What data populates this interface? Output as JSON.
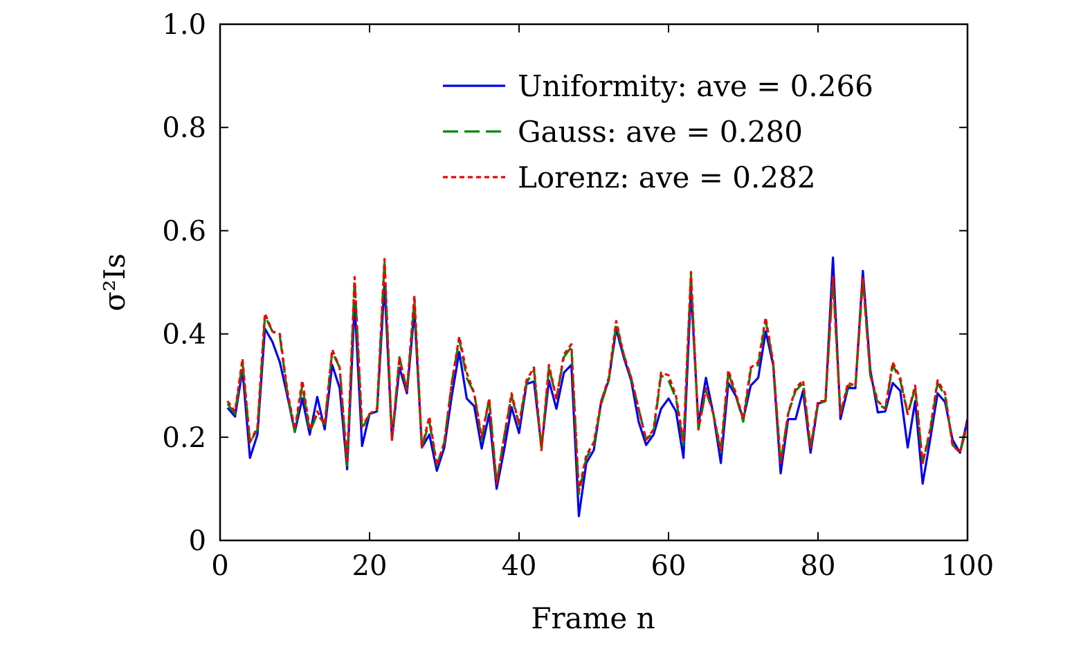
{
  "chart_data": {
    "type": "line",
    "xlabel": "Frame n",
    "ylabel": "σ²Is",
    "xlim": [
      0,
      100
    ],
    "ylim": [
      0,
      1.0
    ],
    "xticks": [
      0,
      20,
      40,
      60,
      80,
      100
    ],
    "xtick_labels": [
      "0",
      "20",
      "40",
      "60",
      "80",
      "100"
    ],
    "yticks": [
      0,
      0.2,
      0.4,
      0.6,
      0.8,
      1.0
    ],
    "ytick_labels": [
      "0",
      "0.2",
      "0.4",
      "0.6",
      "0.8",
      "1.0"
    ],
    "grid": false,
    "legend_position": "top-right",
    "x": [
      1,
      2,
      3,
      4,
      5,
      6,
      7,
      8,
      9,
      10,
      11,
      12,
      13,
      14,
      15,
      16,
      17,
      18,
      19,
      20,
      21,
      22,
      23,
      24,
      25,
      26,
      27,
      28,
      29,
      30,
      31,
      32,
      33,
      34,
      35,
      36,
      37,
      38,
      39,
      40,
      41,
      42,
      43,
      44,
      45,
      46,
      47,
      48,
      49,
      50,
      51,
      52,
      53,
      54,
      55,
      56,
      57,
      58,
      59,
      60,
      61,
      62,
      63,
      64,
      65,
      66,
      67,
      68,
      69,
      70,
      71,
      72,
      73,
      74,
      75,
      76,
      77,
      78,
      79,
      80,
      81,
      82,
      83,
      84,
      85,
      86,
      87,
      88,
      89,
      90,
      91,
      92,
      93,
      94,
      95,
      96,
      97,
      98,
      99,
      100
    ],
    "series": [
      {
        "name": "Uniformity: ave = 0.266",
        "color": "#0000ee",
        "dash": "solid",
        "values": [
          0.257,
          0.24,
          0.33,
          0.16,
          0.205,
          0.41,
          0.385,
          0.345,
          0.28,
          0.21,
          0.275,
          0.205,
          0.278,
          0.215,
          0.34,
          0.295,
          0.138,
          0.46,
          0.183,
          0.245,
          0.25,
          0.498,
          0.195,
          0.335,
          0.285,
          0.445,
          0.18,
          0.205,
          0.135,
          0.18,
          0.28,
          0.365,
          0.275,
          0.26,
          0.178,
          0.245,
          0.1,
          0.175,
          0.258,
          0.208,
          0.303,
          0.308,
          0.18,
          0.31,
          0.255,
          0.325,
          0.34,
          0.047,
          0.15,
          0.175,
          0.27,
          0.31,
          0.41,
          0.355,
          0.31,
          0.23,
          0.185,
          0.205,
          0.255,
          0.275,
          0.25,
          0.16,
          0.488,
          0.225,
          0.315,
          0.245,
          0.15,
          0.305,
          0.28,
          0.235,
          0.3,
          0.315,
          0.405,
          0.34,
          0.13,
          0.235,
          0.235,
          0.29,
          0.17,
          0.265,
          0.27,
          0.548,
          0.235,
          0.295,
          0.295,
          0.522,
          0.33,
          0.248,
          0.25,
          0.305,
          0.29,
          0.18,
          0.27,
          0.11,
          0.195,
          0.285,
          0.268,
          0.195,
          0.17,
          0.235
        ]
      },
      {
        "name": "Gauss: ave = 0.280",
        "color": "#008800",
        "dash": "long-dash",
        "values": [
          0.265,
          0.245,
          0.345,
          0.19,
          0.215,
          0.435,
          0.405,
          0.395,
          0.285,
          0.21,
          0.3,
          0.21,
          0.245,
          0.225,
          0.365,
          0.335,
          0.145,
          0.505,
          0.215,
          0.245,
          0.25,
          0.54,
          0.195,
          0.355,
          0.29,
          0.465,
          0.18,
          0.23,
          0.145,
          0.19,
          0.305,
          0.39,
          0.315,
          0.285,
          0.195,
          0.275,
          0.11,
          0.2,
          0.28,
          0.225,
          0.305,
          0.33,
          0.175,
          0.335,
          0.275,
          0.355,
          0.375,
          0.09,
          0.16,
          0.185,
          0.265,
          0.31,
          0.42,
          0.36,
          0.315,
          0.255,
          0.195,
          0.21,
          0.32,
          0.31,
          0.275,
          0.185,
          0.515,
          0.215,
          0.29,
          0.245,
          0.17,
          0.325,
          0.28,
          0.23,
          0.33,
          0.34,
          0.425,
          0.345,
          0.15,
          0.245,
          0.29,
          0.305,
          0.18,
          0.265,
          0.27,
          0.505,
          0.245,
          0.3,
          0.295,
          0.505,
          0.32,
          0.265,
          0.255,
          0.34,
          0.31,
          0.245,
          0.295,
          0.15,
          0.21,
          0.305,
          0.28,
          0.185,
          0.17,
          0.225
        ]
      },
      {
        "name": "Lorenz: ave = 0.282",
        "color": "#ee0000",
        "dash": "dotted",
        "values": [
          0.27,
          0.25,
          0.352,
          0.19,
          0.22,
          0.44,
          0.405,
          0.4,
          0.29,
          0.215,
          0.31,
          0.215,
          0.25,
          0.225,
          0.37,
          0.335,
          0.15,
          0.51,
          0.22,
          0.245,
          0.255,
          0.545,
          0.195,
          0.355,
          0.29,
          0.475,
          0.18,
          0.24,
          0.145,
          0.19,
          0.305,
          0.395,
          0.325,
          0.285,
          0.2,
          0.275,
          0.11,
          0.2,
          0.285,
          0.225,
          0.31,
          0.335,
          0.175,
          0.34,
          0.275,
          0.36,
          0.38,
          0.095,
          0.165,
          0.19,
          0.27,
          0.315,
          0.425,
          0.36,
          0.315,
          0.255,
          0.195,
          0.215,
          0.325,
          0.32,
          0.28,
          0.19,
          0.52,
          0.215,
          0.295,
          0.245,
          0.175,
          0.33,
          0.285,
          0.235,
          0.335,
          0.345,
          0.432,
          0.345,
          0.15,
          0.245,
          0.295,
          0.31,
          0.18,
          0.27,
          0.27,
          0.51,
          0.245,
          0.305,
          0.3,
          0.51,
          0.32,
          0.27,
          0.255,
          0.345,
          0.315,
          0.245,
          0.3,
          0.15,
          0.215,
          0.31,
          0.285,
          0.185,
          0.17,
          0.23
        ]
      }
    ]
  }
}
